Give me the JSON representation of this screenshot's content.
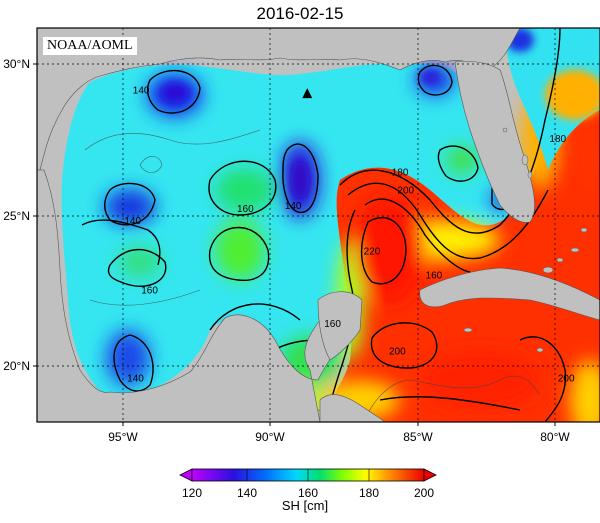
{
  "title": "2016-02-15",
  "credit": "NOAA/AOML",
  "map": {
    "lat_labels": [
      "30°N",
      "25°N",
      "20°N"
    ],
    "lon_labels": [
      "95°W",
      "90°W",
      "85°W",
      "80°W"
    ],
    "lon_range": [
      -98,
      -78
    ],
    "lat_range": [
      18,
      31
    ],
    "marker": {
      "symbol": "▲",
      "lon": -88.4,
      "lat": 28.9
    },
    "contour_labels": [
      {
        "text": "140",
        "lon": -94.3,
        "lat": 28.9
      },
      {
        "text": "140",
        "lon": -94.6,
        "lat": 24.6
      },
      {
        "text": "140",
        "lon": -94.5,
        "lat": 19.4
      },
      {
        "text": "140",
        "lon": -88.9,
        "lat": 25.1
      },
      {
        "text": "160",
        "lon": -94.0,
        "lat": 22.3
      },
      {
        "text": "160",
        "lon": -90.6,
        "lat": 25.0
      },
      {
        "text": "160",
        "lon": -87.5,
        "lat": 21.2
      },
      {
        "text": "160",
        "lon": -83.9,
        "lat": 22.8
      },
      {
        "text": "180",
        "lon": -85.1,
        "lat": 26.2
      },
      {
        "text": "180",
        "lon": -79.5,
        "lat": 27.3
      },
      {
        "text": "200",
        "lon": -84.9,
        "lat": 25.6
      },
      {
        "text": "200",
        "lon": -85.2,
        "lat": 20.3
      },
      {
        "text": "200",
        "lon": -79.2,
        "lat": 19.4
      },
      {
        "text": "220",
        "lon": -86.1,
        "lat": 23.6
      }
    ]
  },
  "colorbar": {
    "ticks": [
      "120",
      "140",
      "160",
      "180",
      "200"
    ],
    "label": "SH [cm]",
    "colors": [
      "#c000ff",
      "#2a00e0",
      "#0060ff",
      "#00d0ff",
      "#00e060",
      "#90ff00",
      "#ffff00",
      "#ff9000",
      "#ff2000",
      "#e00000"
    ]
  },
  "colors": {
    "land": "#c0c0c0",
    "ocean_mid": "#2ee8e0",
    "warm": "#ff2a00"
  }
}
